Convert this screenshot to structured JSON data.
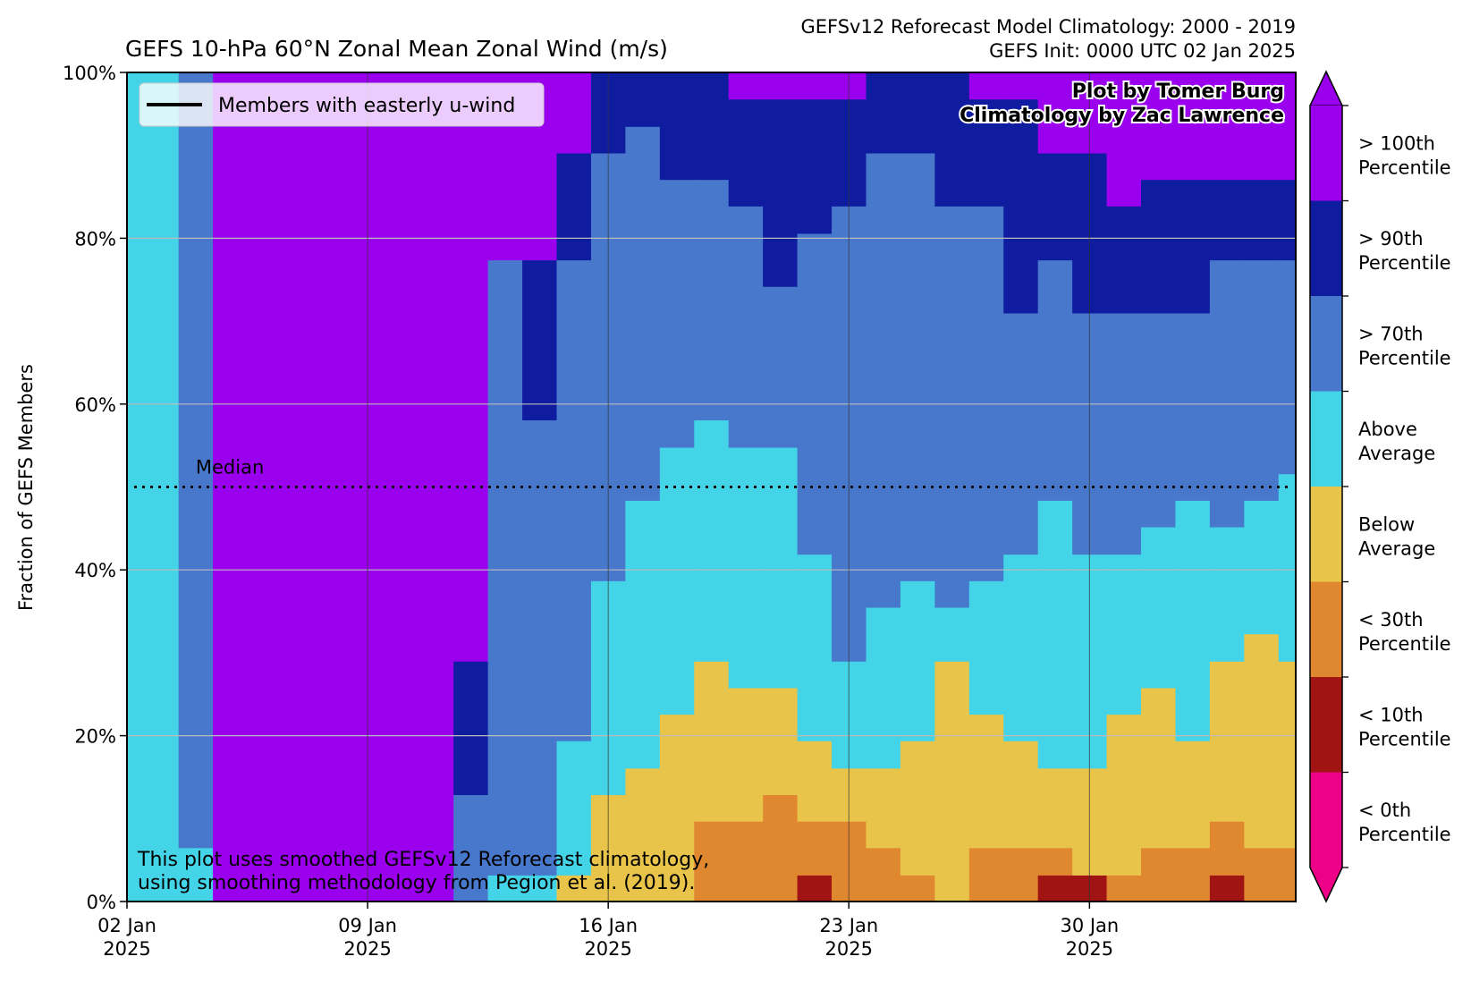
{
  "chart_data": {
    "type": "area",
    "title": "GEFS 10-hPa 60°N Zonal Mean Zonal Wind (m/s)",
    "subtitle_lines": [
      "GEFSv12 Reforecast Model Climatology: 2000 - 2019",
      "GEFS Init: 0000 UTC 02 Jan 2025"
    ],
    "ylabel": "Fraction of GEFS Members",
    "ylim": [
      0,
      100
    ],
    "y_ticks": [
      "0%",
      "20%",
      "40%",
      "60%",
      "80%",
      "100%"
    ],
    "x_ticks": [
      {
        "day": 0,
        "line1": "02 Jan",
        "line2": "2025"
      },
      {
        "day": 7,
        "line1": "09 Jan",
        "line2": "2025"
      },
      {
        "day": 14,
        "line1": "16 Jan",
        "line2": "2025"
      },
      {
        "day": 21,
        "line1": "23 Jan",
        "line2": "2025"
      },
      {
        "day": 28,
        "line1": "30 Jan",
        "line2": "2025"
      }
    ],
    "x_range_days": [
      0,
      34
    ],
    "step_days": 1,
    "median_label": "Median",
    "median_value": 50,
    "legend_label": "Members with easterly u-wind",
    "credits": [
      "Plot by Tomer Burg",
      "Climatology by Zac Lawrence"
    ],
    "footnote": [
      "This plot uses smoothed GEFSv12 Reforecast climatology,",
      "using smoothing methodology from Pegion et al. (2019)."
    ],
    "categories": [
      {
        "name": "< 0th Percentile",
        "color": "#ee0088"
      },
      {
        "name": "< 10th Percentile",
        "color": "#a01414"
      },
      {
        "name": "< 30th Percentile",
        "color": "#e08830"
      },
      {
        "name": "Below Average",
        "color": "#e8c44a"
      },
      {
        "name": "Above Average",
        "color": "#44d4e8"
      },
      {
        "name": "> 70th Percentile",
        "color": "#4878cc"
      },
      {
        "name": "> 90th Percentile",
        "color": "#101ca0"
      },
      {
        "name": "> 100th Percentile",
        "color": "#9a00ee"
      }
    ],
    "colorbar_labels": [
      {
        "line1": "> 100th",
        "line2": "Percentile"
      },
      {
        "line1": "> 90th",
        "line2": "Percentile"
      },
      {
        "line1": "> 70th",
        "line2": "Percentile"
      },
      {
        "line1": "Above",
        "line2": "Average"
      },
      {
        "line1": "Below",
        "line2": "Average"
      },
      {
        "line1": "< 30th",
        "line2": "Percentile"
      },
      {
        "line1": "< 10th",
        "line2": "Percentile"
      },
      {
        "line1": "< 0th",
        "line2": "Percentile"
      }
    ],
    "columns_note": "Each column = one 24h step; values are cumulative upper boundaries (%) of categories from bottom (< 0th) to top (> 100th).",
    "columns": [
      {
        "x0": 0.0,
        "x1": 1.5,
        "b": [
          0,
          0,
          0,
          0,
          100,
          100,
          100,
          100
        ]
      },
      {
        "x0": 1.5,
        "x1": 2.5,
        "b": [
          0,
          0,
          0,
          0,
          6.5,
          100,
          100,
          100
        ]
      },
      {
        "x0": 2.5,
        "x1": 3.5,
        "b": [
          0,
          0,
          0,
          0,
          0,
          0,
          0,
          100
        ]
      },
      {
        "x0": 3.5,
        "x1": 4.5,
        "b": [
          0,
          0,
          0,
          0,
          0,
          0,
          0,
          100
        ]
      },
      {
        "x0": 4.5,
        "x1": 5.5,
        "b": [
          0,
          0,
          0,
          0,
          0,
          0,
          0,
          100
        ]
      },
      {
        "x0": 5.5,
        "x1": 6.5,
        "b": [
          0,
          0,
          0,
          0,
          0,
          0,
          0,
          100
        ]
      },
      {
        "x0": 6.5,
        "x1": 7.5,
        "b": [
          0,
          0,
          0,
          0,
          0,
          0,
          0,
          100
        ]
      },
      {
        "x0": 7.5,
        "x1": 8.5,
        "b": [
          0,
          0,
          0,
          0,
          0,
          0,
          0,
          100
        ]
      },
      {
        "x0": 8.5,
        "x1": 9.5,
        "b": [
          0,
          0,
          0,
          0,
          0,
          0,
          0,
          100
        ]
      },
      {
        "x0": 9.5,
        "x1": 10.5,
        "b": [
          0,
          0,
          0,
          0,
          0,
          12.9,
          29,
          100
        ]
      },
      {
        "x0": 10.5,
        "x1": 11.5,
        "b": [
          0,
          0,
          0,
          0,
          3.2,
          77.4,
          77.4,
          100
        ]
      },
      {
        "x0": 11.5,
        "x1": 12.5,
        "b": [
          0,
          0,
          0,
          0,
          3.2,
          58.1,
          77.4,
          100
        ]
      },
      {
        "x0": 12.5,
        "x1": 13.5,
        "b": [
          0,
          0,
          0,
          3.2,
          19.4,
          77.4,
          90.3,
          100
        ]
      },
      {
        "x0": 13.5,
        "x1": 14.5,
        "b": [
          0,
          0,
          0,
          12.9,
          38.7,
          90.3,
          100,
          100
        ]
      },
      {
        "x0": 14.5,
        "x1": 15.5,
        "b": [
          0,
          0,
          0,
          16.1,
          48.4,
          93.5,
          100,
          100
        ]
      },
      {
        "x0": 15.5,
        "x1": 16.5,
        "b": [
          0,
          0,
          0,
          22.6,
          54.8,
          87.1,
          100,
          100
        ]
      },
      {
        "x0": 16.5,
        "x1": 17.5,
        "b": [
          0,
          0,
          9.7,
          29,
          58.1,
          87.1,
          100,
          100
        ]
      },
      {
        "x0": 17.5,
        "x1": 18.5,
        "b": [
          0,
          0,
          9.7,
          25.8,
          54.8,
          83.9,
          96.8,
          100
        ]
      },
      {
        "x0": 18.5,
        "x1": 19.5,
        "b": [
          0,
          0,
          12.9,
          25.8,
          54.8,
          74.2,
          96.8,
          100
        ]
      },
      {
        "x0": 19.5,
        "x1": 20.5,
        "b": [
          0,
          3.2,
          9.7,
          19.4,
          41.9,
          80.6,
          96.8,
          100
        ]
      },
      {
        "x0": 20.5,
        "x1": 21.5,
        "b": [
          0,
          0,
          9.7,
          16.1,
          29,
          83.9,
          96.8,
          100
        ]
      },
      {
        "x0": 21.5,
        "x1": 22.5,
        "b": [
          0,
          0,
          6.5,
          16.1,
          35.5,
          90.3,
          100,
          100
        ]
      },
      {
        "x0": 22.5,
        "x1": 23.5,
        "b": [
          0,
          0,
          3.2,
          19.4,
          38.7,
          90.3,
          100,
          100
        ]
      },
      {
        "x0": 23.5,
        "x1": 24.5,
        "b": [
          0,
          0,
          0,
          29,
          35.5,
          83.9,
          100,
          100
        ]
      },
      {
        "x0": 24.5,
        "x1": 25.5,
        "b": [
          0,
          0,
          6.5,
          22.6,
          38.7,
          83.9,
          96.8,
          100
        ]
      },
      {
        "x0": 25.5,
        "x1": 26.5,
        "b": [
          0,
          0,
          6.5,
          19.4,
          41.9,
          71,
          96.8,
          100
        ]
      },
      {
        "x0": 26.5,
        "x1": 27.5,
        "b": [
          0,
          3.2,
          6.5,
          16.1,
          48.4,
          77.4,
          90.3,
          100
        ]
      },
      {
        "x0": 27.5,
        "x1": 28.5,
        "b": [
          0,
          3.2,
          3.2,
          16.1,
          41.9,
          71,
          90.3,
          100
        ]
      },
      {
        "x0": 28.5,
        "x1": 29.5,
        "b": [
          0,
          0,
          3.2,
          22.6,
          41.9,
          71,
          83.9,
          100
        ]
      },
      {
        "x0": 29.5,
        "x1": 30.5,
        "b": [
          0,
          0,
          6.5,
          25.8,
          45.2,
          71,
          87.1,
          100
        ]
      },
      {
        "x0": 30.5,
        "x1": 31.5,
        "b": [
          0,
          0,
          6.5,
          19.4,
          48.4,
          71,
          87.1,
          100
        ]
      },
      {
        "x0": 31.5,
        "x1": 32.5,
        "b": [
          0,
          3.2,
          9.7,
          29,
          45.2,
          77.4,
          87.1,
          100
        ]
      },
      {
        "x0": 32.5,
        "x1": 33.5,
        "b": [
          0,
          0,
          6.5,
          32.3,
          48.4,
          77.4,
          87.1,
          100
        ]
      },
      {
        "x0": 33.5,
        "x1": 34.0,
        "b": [
          0,
          0,
          6.5,
          29,
          51.6,
          77.4,
          87.1,
          100
        ]
      }
    ]
  }
}
